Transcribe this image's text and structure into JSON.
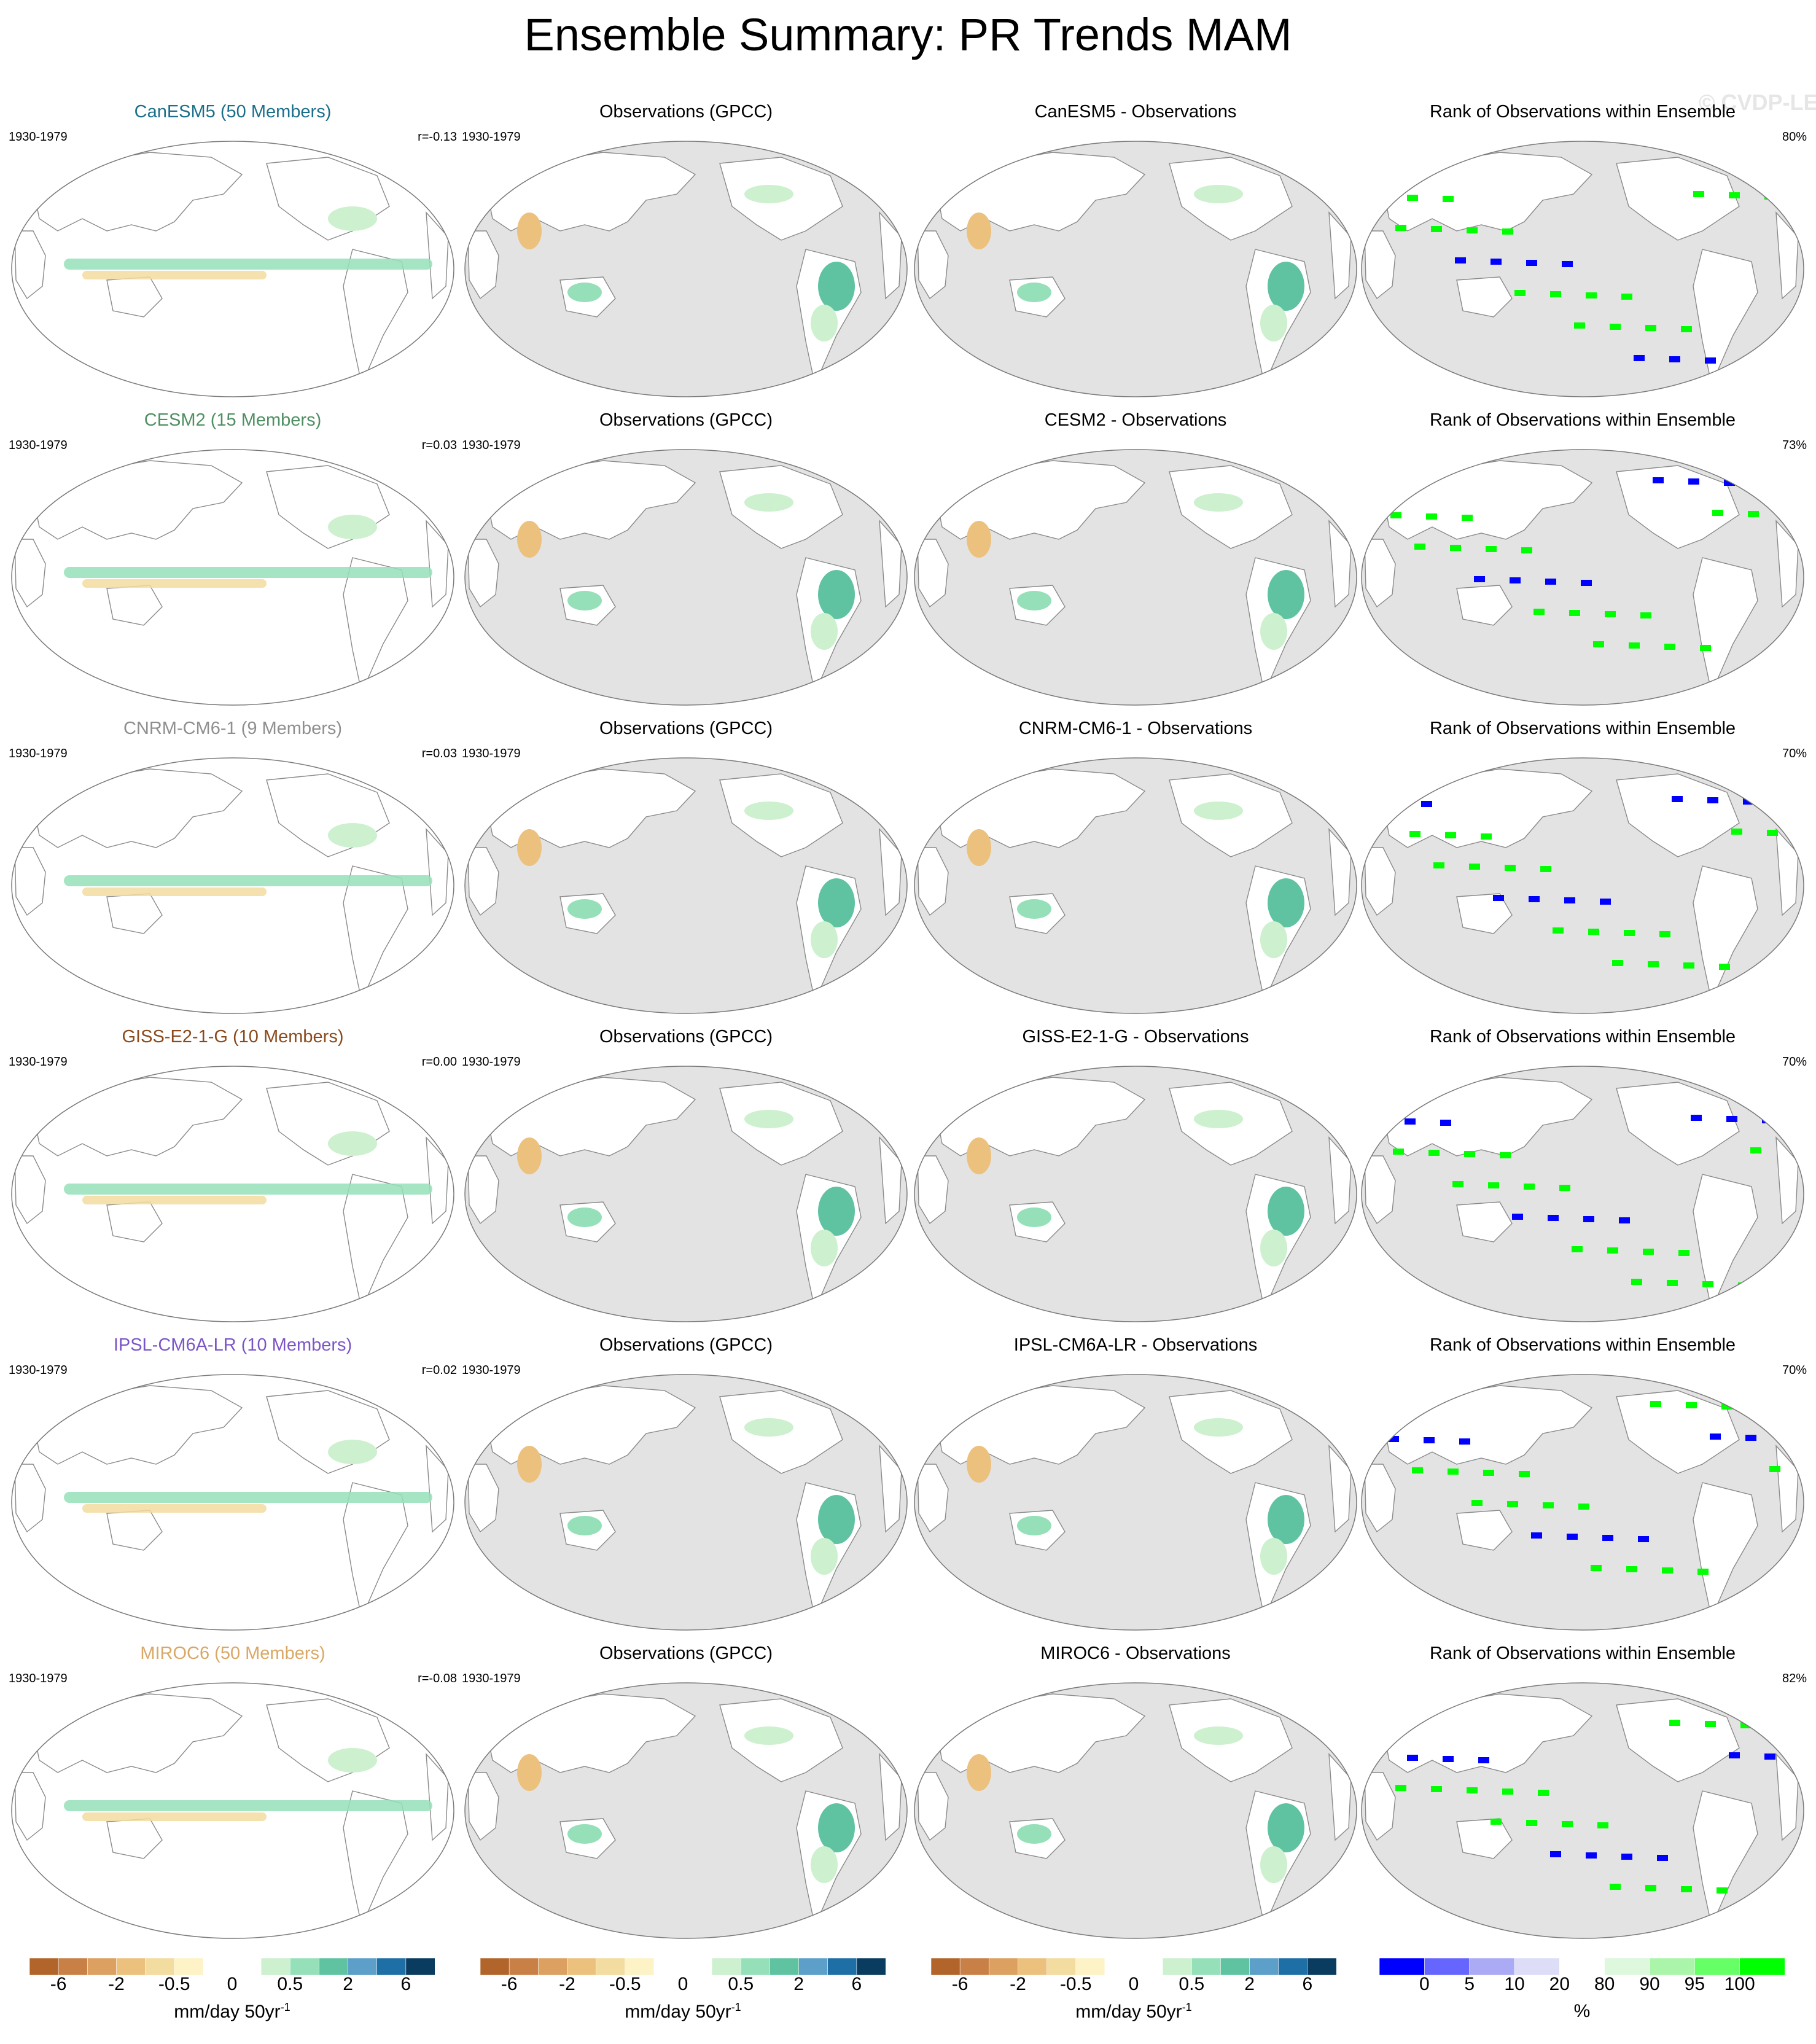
{
  "title": "Ensemble Summary: PR Trends MAM",
  "watermark": "© CVDP-LE",
  "colors": {
    "ocean_obs": "#e3e3e3",
    "land_white": "#ffffff",
    "coast": "#8a8a8a",
    "diverging": [
      "#b2652a",
      "#c98047",
      "#dca061",
      "#ecc17e",
      "#f3dca0",
      "#fdf3c6",
      "#ffffff",
      "#ffffff",
      "#cdf0cf",
      "#95e0b8",
      "#5fc3a1",
      "#5c9fc9",
      "#1e6fa6",
      "#0a3c5f"
    ],
    "rank": [
      "#0000ff",
      "#6666ff",
      "#aaaaf5",
      "#ddddf8",
      "#ffffff",
      "#ddf8dd",
      "#aaf5aa",
      "#66ff66",
      "#00ff00"
    ]
  },
  "chart_data": {
    "type": "map_panels",
    "period": "1930-1979",
    "rows": [
      {
        "model": "CanESM5 (50 Members)",
        "model_color": "#1b6f8a",
        "r": "r=-0.13",
        "obs_title": "Observations (GPCC)",
        "diff_title": "CanESM5 - Observations",
        "rank_title": "Rank of Observations within Ensemble",
        "rank_pct": "80%"
      },
      {
        "model": "CESM2 (15 Members)",
        "model_color": "#4f8f62",
        "r": "r=0.03",
        "obs_title": "Observations (GPCC)",
        "diff_title": "CESM2 - Observations",
        "rank_title": "Rank of Observations within Ensemble",
        "rank_pct": "73%"
      },
      {
        "model": "CNRM-CM6-1 (9 Members)",
        "model_color": "#8f8f8f",
        "r": "r=0.03",
        "obs_title": "Observations (GPCC)",
        "diff_title": "CNRM-CM6-1 - Observations",
        "rank_title": "Rank of Observations within Ensemble",
        "rank_pct": "70%"
      },
      {
        "model": "GISS-E2-1-G (10 Members)",
        "model_color": "#8b4a1c",
        "r": "r=0.00",
        "obs_title": "Observations (GPCC)",
        "diff_title": "GISS-E2-1-G - Observations",
        "rank_title": "Rank of Observations within Ensemble",
        "rank_pct": "70%"
      },
      {
        "model": "IPSL-CM6A-LR (10 Members)",
        "model_color": "#7b55c8",
        "r": "r=0.02",
        "obs_title": "Observations (GPCC)",
        "diff_title": "IPSL-CM6A-LR - Observations",
        "rank_title": "Rank of Observations within Ensemble",
        "rank_pct": "70%"
      },
      {
        "model": "MIROC6 (50 Members)",
        "model_color": "#d9a866",
        "r": "r=-0.08",
        "obs_title": "Observations (GPCC)",
        "diff_title": "MIROC6 - Observations",
        "rank_title": "Rank of Observations within Ensemble",
        "rank_pct": "82%"
      }
    ],
    "colorbars": [
      {
        "ticks": [
          "-6",
          "-2",
          "-0.5",
          "0",
          "0.5",
          "2",
          "6"
        ],
        "label": "mm/day 50yr",
        "label_sup": "-1"
      },
      {
        "ticks": [
          "-6",
          "-2",
          "-0.5",
          "0",
          "0.5",
          "2",
          "6"
        ],
        "label": "mm/day 50yr",
        "label_sup": "-1"
      },
      {
        "ticks": [
          "-6",
          "-2",
          "-0.5",
          "0",
          "0.5",
          "2",
          "6"
        ],
        "label": "mm/day 50yr",
        "label_sup": "-1"
      },
      {
        "ticks": [
          "0",
          "5",
          "10",
          "20",
          "80",
          "90",
          "95",
          "100"
        ],
        "label": "%",
        "label_sup": ""
      }
    ]
  }
}
